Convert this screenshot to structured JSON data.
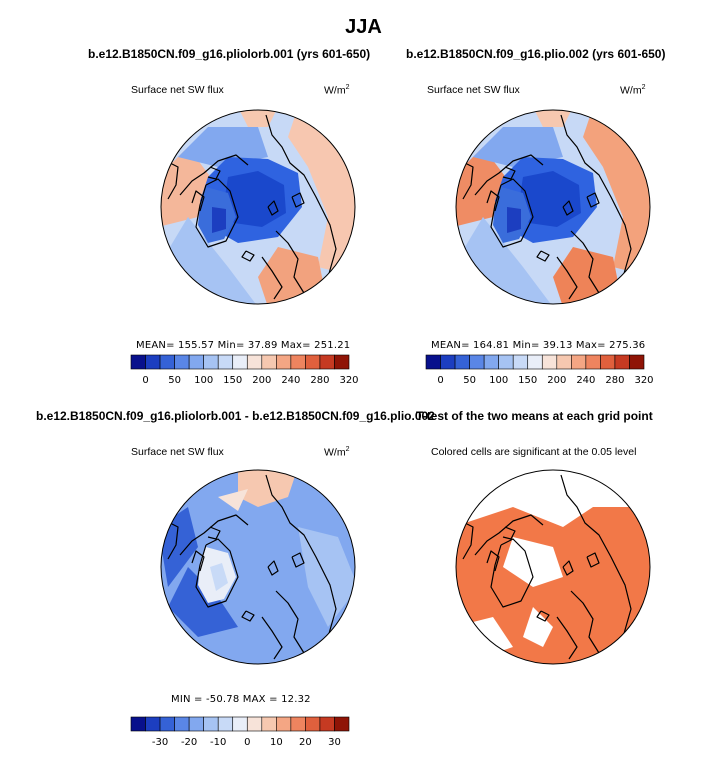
{
  "figure": {
    "title": "JJA"
  },
  "panels": {
    "p1": {
      "title": "b.e12.B1850CN.f09_g16.pliolorb.001 (yrs 601-650)",
      "variable": "Surface net SW flux",
      "units": "W/m",
      "units_exp": "2",
      "stats": "MEAN= 155.57   Min=  37.89   Max= 251.21"
    },
    "p2": {
      "title": "b.e12.B1850CN.f09_g16.plio.002 (yrs 601-650)",
      "variable": "Surface net SW flux",
      "units": "W/m",
      "units_exp": "2",
      "stats": "MEAN= 164.81   Min=  39.13   Max= 275.36"
    },
    "p3": {
      "title": "b.e12.B1850CN.f09_g16.pliolorb.001 - b.e12.B1850CN.f09_g16.plio.002",
      "variable": "Surface net SW flux",
      "units": "W/m",
      "units_exp": "2",
      "stats": "MIN = -50.78  MAX =  12.32"
    },
    "p4": {
      "title": "T-test of the two means at each grid point",
      "subtitle": "Colored cells are significant at the 0.05 level"
    }
  },
  "chart_data": [
    {
      "type": "heatmap",
      "projection": "north-polar-stereographic",
      "title": "b.e12.B1850CN.f09_g16.pliolorb.001 (yrs 601-650)",
      "variable": "Surface net SW flux",
      "units": "W/m2",
      "mean": 155.57,
      "min": 37.89,
      "max": 251.21,
      "colorbar_levels": [
        0,
        25,
        50,
        75,
        100,
        125,
        150,
        175,
        200,
        220,
        240,
        260,
        280,
        300,
        320
      ],
      "colorbar_tick_labels": [
        "0",
        "50",
        "100",
        "150",
        "200",
        "240",
        "280",
        "320"
      ]
    },
    {
      "type": "heatmap",
      "projection": "north-polar-stereographic",
      "title": "b.e12.B1850CN.f09_g16.plio.002 (yrs 601-650)",
      "variable": "Surface net SW flux",
      "units": "W/m2",
      "mean": 164.81,
      "min": 39.13,
      "max": 275.36,
      "colorbar_levels": [
        0,
        25,
        50,
        75,
        100,
        125,
        150,
        175,
        200,
        220,
        240,
        260,
        280,
        300,
        320
      ],
      "colorbar_tick_labels": [
        "0",
        "50",
        "100",
        "150",
        "200",
        "240",
        "280",
        "320"
      ]
    },
    {
      "type": "heatmap",
      "projection": "north-polar-stereographic",
      "title": "b.e12.B1850CN.f09_g16.pliolorb.001 - b.e12.B1850CN.f09_g16.plio.002",
      "variable": "Surface net SW flux",
      "units": "W/m2",
      "min": -50.78,
      "max": 12.32,
      "colorbar_levels": [
        -35,
        -30,
        -25,
        -20,
        -15,
        -10,
        -5,
        0,
        5,
        10,
        15,
        20,
        25,
        30,
        35
      ],
      "colorbar_tick_labels": [
        "-30",
        "-20",
        "-10",
        "0",
        "10",
        "20",
        "30"
      ]
    },
    {
      "type": "heatmap",
      "projection": "north-polar-stereographic",
      "title": "T-test of the two means at each grid point",
      "subtitle": "Colored cells are significant at the 0.05 level",
      "significance_level": 0.05
    }
  ],
  "colors": {
    "abs_palette": [
      "#08108c",
      "#1c3ec0",
      "#3562d6",
      "#5a86e6",
      "#82a8ef",
      "#a6c3f3",
      "#c8daf7",
      "#e9eef8",
      "#f7e3d9",
      "#f6c8b0",
      "#f4a684",
      "#ee845f",
      "#e0603d",
      "#c63a22",
      "#8f1406"
    ],
    "diff_palette": [
      "#08108c",
      "#1c3ec0",
      "#3562d6",
      "#5a86e6",
      "#82a8ef",
      "#a6c3f3",
      "#c8daf7",
      "#e9eef8",
      "#f7e3d9",
      "#f6c8b0",
      "#f4a684",
      "#ee845f",
      "#e0603d",
      "#c63a22",
      "#8f1406"
    ],
    "significant": "#f27848",
    "ice": "#2f63e0",
    "deep": "#1a48cc",
    "coast": "#000000"
  }
}
